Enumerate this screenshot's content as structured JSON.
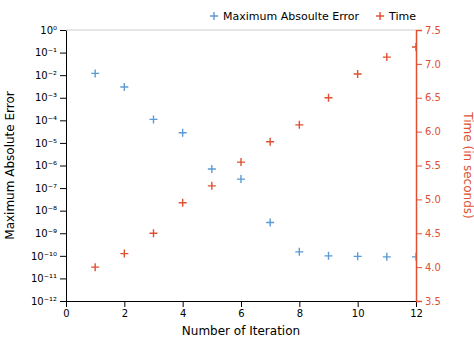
{
  "chart_data": {
    "type": "scatter",
    "x": [
      1,
      2,
      3,
      4,
      5,
      6,
      7,
      8,
      9,
      10,
      11,
      12
    ],
    "series": [
      {
        "name": "Maximum Absoulte Error",
        "color": "#5B9BD5",
        "marker": "plus",
        "axis": "y",
        "values": [
          0.012,
          0.003,
          0.00011,
          2.8e-05,
          7e-07,
          2.5e-07,
          3e-09,
          1.5e-10,
          1e-10,
          9.5e-11,
          9e-11,
          9e-11
        ]
      },
      {
        "name": "Time",
        "color": "#E05030",
        "marker": "plus",
        "axis": "y2",
        "values": [
          4.0,
          4.2,
          4.5,
          4.95,
          5.2,
          5.55,
          5.85,
          6.1,
          6.5,
          6.85,
          7.1,
          7.25
        ]
      }
    ],
    "x_label": "Number of Iteration",
    "y_label": "Maximum Absolute Error",
    "y2_label": "Time (in seconds)",
    "xlim": [
      0,
      12
    ],
    "xticks": [
      0,
      2,
      4,
      6,
      8,
      10,
      12
    ],
    "ylim": [
      1e-12,
      1
    ],
    "yticks": [
      {
        "value": 1e-12,
        "label": "10⁻¹²"
      },
      {
        "value": 1e-11,
        "label": "10⁻¹¹"
      },
      {
        "value": 1e-10,
        "label": "10⁻¹⁰"
      },
      {
        "value": 1e-09,
        "label": "10⁻⁹"
      },
      {
        "value": 1e-08,
        "label": "10⁻⁸"
      },
      {
        "value": 1e-07,
        "label": "10⁻⁷"
      },
      {
        "value": 1e-06,
        "label": "10⁻⁶"
      },
      {
        "value": 1e-05,
        "label": "10⁻⁵"
      },
      {
        "value": 0.0001,
        "label": "10⁻⁴"
      },
      {
        "value": 0.001,
        "label": "10⁻³"
      },
      {
        "value": 0.01,
        "label": "10⁻²"
      },
      {
        "value": 0.1,
        "label": "10⁻¹"
      },
      {
        "value": 1,
        "label": "10⁰"
      }
    ],
    "y2lim": [
      3.5,
      7.5
    ],
    "y2ticks": [
      3.5,
      {
        "value": 4,
        "label": "4.0"
      },
      4.5,
      {
        "value": 5,
        "label": "5.0"
      },
      5.5,
      {
        "value": 6,
        "label": "6.0"
      },
      6.5,
      {
        "value": 7,
        "label": "7.0"
      },
      7.5
    ],
    "log": "y",
    "grid": false,
    "legend": "upper right"
  }
}
